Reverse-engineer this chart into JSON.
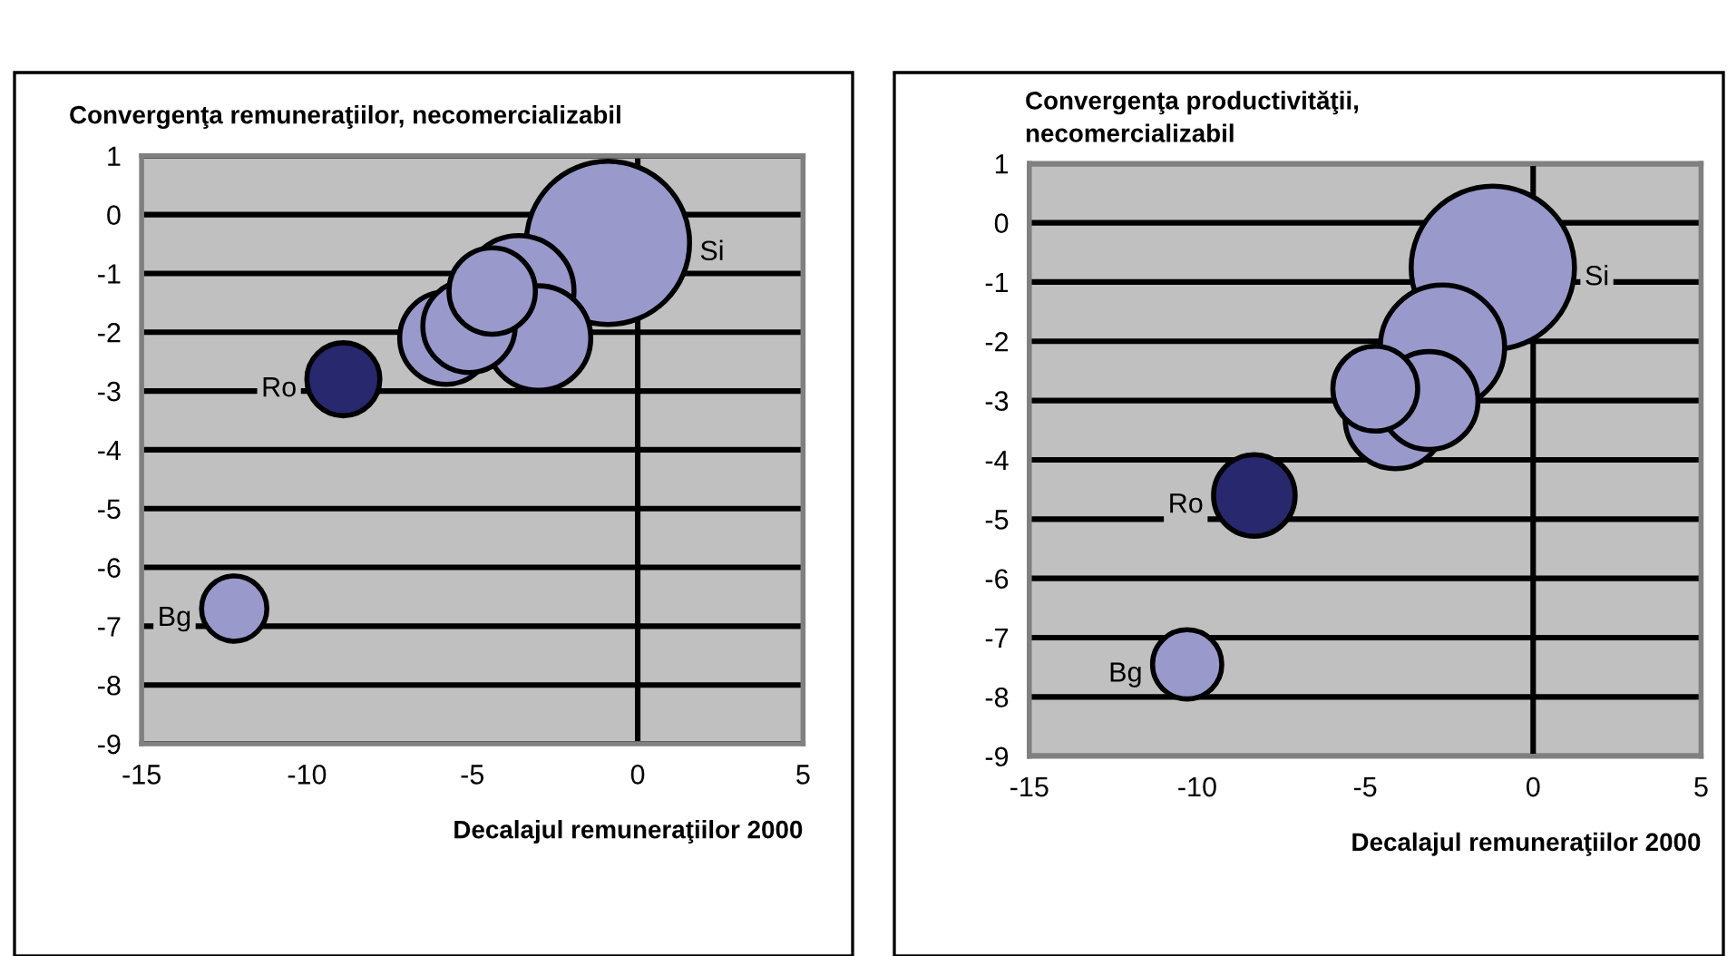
{
  "chart_data": [
    {
      "type": "bubble",
      "title": "Convergenţa remuneraţiilor, necomercializabil",
      "xlabel": "Decalajul remuneraţiilor 2000",
      "xlim": [
        -15,
        5
      ],
      "xticks": [
        -15,
        -10,
        -5,
        0,
        5
      ],
      "ylim": [
        -9,
        1
      ],
      "yticks": [
        -9,
        -8,
        -7,
        -6,
        -5,
        -4,
        -3,
        -2,
        -1,
        0,
        1
      ],
      "grid": "y",
      "ref_lines": [
        {
          "axis": "x",
          "value": 0,
          "color": "#000000"
        }
      ],
      "series": [
        {
          "color": "#9999cc",
          "x": [
            -3.6,
            -4.4,
            -3.0,
            -5.8,
            -5.1
          ],
          "values": [
            -1.3,
            -1.3,
            -2.1,
            -2.1,
            -1.9
          ],
          "sizes": [
            0.46,
            0.28,
            0.41,
            0.32,
            0.32
          ]
        },
        {
          "name": "Si",
          "color": "#9999cc",
          "x": [
            -0.9
          ],
          "values": [
            -0.48
          ],
          "sizes": [
            1
          ]
        },
        {
          "name": "Ro",
          "color": "#28286e",
          "x": [
            -8.9
          ],
          "values": [
            -2.8
          ],
          "sizes": [
            0.2
          ]
        },
        {
          "name": "Bg",
          "color": "#9999cc",
          "x": [
            -12.2
          ],
          "values": [
            -6.7
          ],
          "sizes": [
            0.16
          ]
        }
      ]
    },
    {
      "type": "bubble",
      "title": "Convergenţa productivităţii,\nnecomercializabil",
      "xlabel": "Decalajul remuneraţiilor 2000",
      "xlim": [
        -15,
        5
      ],
      "xticks": [
        -15,
        -10,
        -5,
        0,
        5
      ],
      "ylim": [
        -9,
        1
      ],
      "yticks": [
        -9,
        -8,
        -7,
        -6,
        -5,
        -4,
        -3,
        -2,
        -1,
        0,
        1
      ],
      "grid": "y",
      "ref_lines": [
        {
          "axis": "x",
          "value": 0,
          "color": "#000000"
        }
      ],
      "series": [
        {
          "color": "#9999cc",
          "x": [
            -4.7,
            -3.1,
            -2.7,
            -4.1
          ],
          "values": [
            -2.8,
            -3.0,
            -2.1,
            -3.3
          ],
          "sizes": [
            0.27,
            0.36,
            0.58,
            0.38
          ]
        },
        {
          "name": "Si",
          "color": "#9999cc",
          "x": [
            -1.2
          ],
          "values": [
            -0.76
          ],
          "sizes": [
            1
          ]
        },
        {
          "name": "Ro",
          "color": "#28286e",
          "x": [
            -8.3
          ],
          "values": [
            -4.6
          ],
          "sizes": [
            0.25
          ]
        },
        {
          "name": "Bg",
          "color": "#9999cc",
          "x": [
            -10.3
          ],
          "values": [
            -7.45
          ],
          "sizes": [
            0.18
          ]
        }
      ]
    }
  ]
}
